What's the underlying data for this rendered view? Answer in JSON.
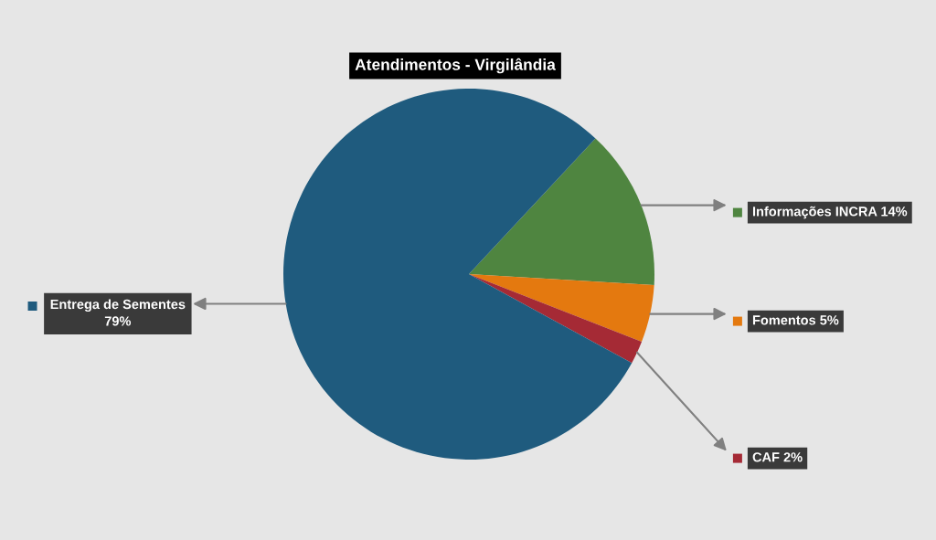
{
  "chart_data": {
    "type": "pie",
    "title": "Atendimentos - Virgilândia",
    "categories": [
      "Informações INCRA",
      "Fomentos",
      "CAF",
      "Entrega de Sementes"
    ],
    "values": [
      14,
      5,
      2,
      79
    ],
    "value_labels": [
      "14%",
      "5%",
      "2%",
      "79%"
    ],
    "colors": [
      "#4f8540",
      "#e4790f",
      "#a52a35",
      "#1f5b7e"
    ],
    "legend": "right"
  }
}
